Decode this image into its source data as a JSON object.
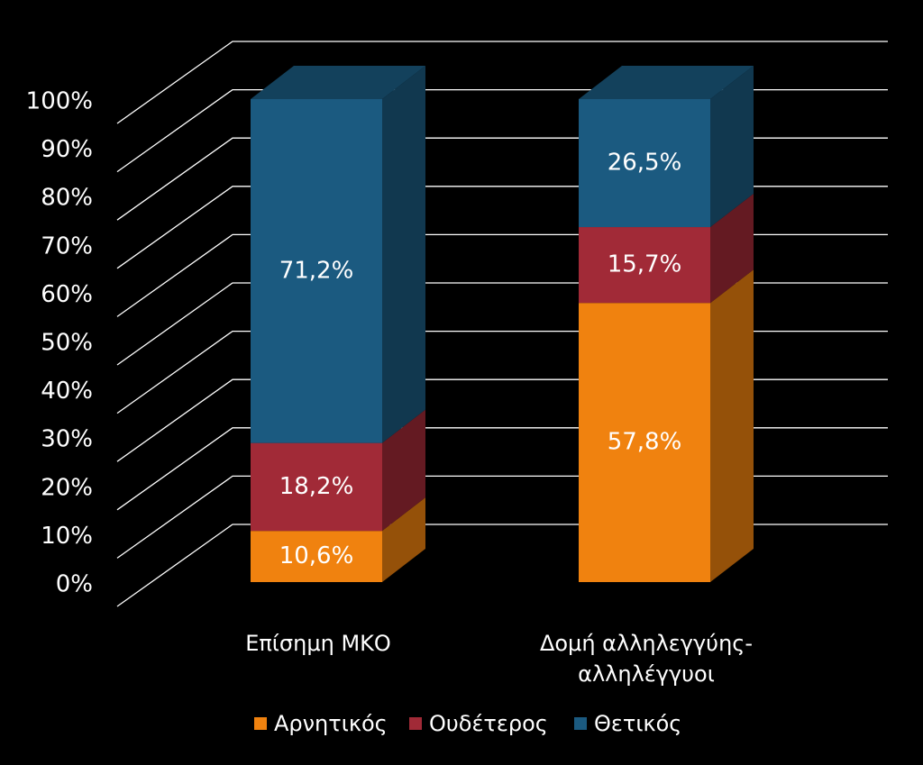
{
  "chart_data": {
    "type": "bar",
    "stacked": true,
    "percent_stacked": true,
    "three_d": true,
    "categories": [
      "Επίσημη ΜΚΟ",
      "Δομή αλληλεγγύης-αλληλέγγυοι"
    ],
    "category_label_lines": [
      [
        "Επίσημη ΜΚΟ"
      ],
      [
        "Δομή αλληλεγγύης-",
        "αλληλέγγυοι"
      ]
    ],
    "series": [
      {
        "name": "Αρνητικός",
        "values": [
          10.6,
          57.8
        ],
        "labels": [
          "10,6%",
          "57,8%"
        ],
        "color": "#F0820F"
      },
      {
        "name": "Ουδέτερος",
        "values": [
          18.2,
          15.7
        ],
        "labels": [
          "18,2%",
          "15,7%"
        ],
        "color": "#A12A37"
      },
      {
        "name": "Θετικός",
        "values": [
          71.2,
          26.5
        ],
        "labels": [
          "71,2%",
          "26,5%"
        ],
        "color": "#1B5A80"
      }
    ],
    "y_ticks": [
      "0%",
      "10%",
      "20%",
      "30%",
      "40%",
      "50%",
      "60%",
      "70%",
      "80%",
      "90%",
      "100%"
    ],
    "ylim": [
      0,
      100
    ],
    "title": "",
    "xlabel": "",
    "ylabel": "",
    "grid": true,
    "legend_position": "bottom",
    "colors": {
      "background": "#000000",
      "grid": "#ffffff",
      "text": "#ffffff"
    }
  }
}
